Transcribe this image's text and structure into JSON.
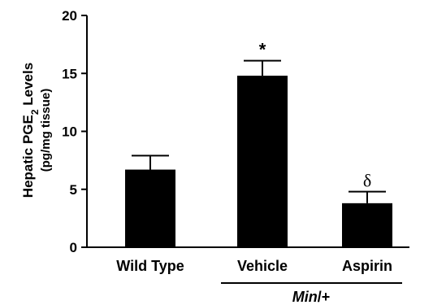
{
  "chart_data": {
    "type": "bar",
    "ylabel_prefix": "Hepatic PGE",
    "ylabel_sub": "2",
    "ylabel_suffix": " Levels",
    "ylabel_line2": "(pg/mg tissue)",
    "ylim": [
      0,
      20
    ],
    "yticks": [
      "0",
      "5",
      "10",
      "15",
      "20"
    ],
    "categories": [
      "Wild Type",
      "Vehicle",
      "Aspirin"
    ],
    "values": [
      6.7,
      14.8,
      3.8
    ],
    "errors": [
      1.2,
      1.3,
      1.0
    ],
    "annotations": [
      "",
      "*",
      "δ"
    ],
    "group_label_italic": "Min",
    "group_label_rest": "/+",
    "colors": {
      "bar": "#000000",
      "axis": "#000000"
    }
  }
}
